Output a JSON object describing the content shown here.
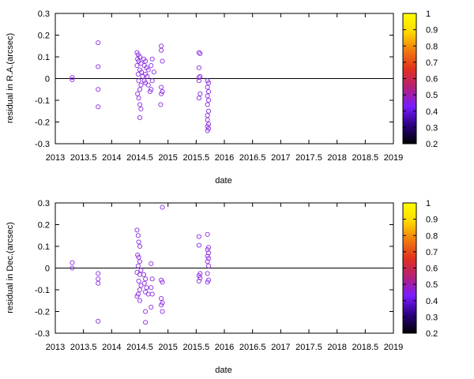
{
  "chart_data": [
    {
      "type": "scatter",
      "xlabel": "date",
      "ylabel": "residual in R.A.(arcsec)",
      "xlim": [
        2013,
        2019
      ],
      "ylim": [
        -0.3,
        0.3
      ],
      "xticks": [
        "2013",
        "2013.5",
        "2014",
        "2014.5",
        "2015",
        "2015.5",
        "2016",
        "2016.5",
        "2017",
        "2017.5",
        "2018",
        "2018.5",
        "2019"
      ],
      "yticks": [
        "-0.3",
        "-0.2",
        "-0.1",
        "0",
        "0.1",
        "0.2",
        "0.3"
      ],
      "zero_line": true,
      "marker": "open-circle",
      "marker_color": "#8a2be2",
      "colorbar": {
        "range": [
          0.2,
          1
        ],
        "ticks": [
          "0.2",
          "0.3",
          "0.4",
          "0.5",
          "0.6",
          "0.7",
          "0.8",
          "0.9",
          "1"
        ],
        "gradient": [
          "#000000",
          "#2a0080",
          "#7a1cff",
          "#b21f7a",
          "#e0301e",
          "#f07a10",
          "#ffd700",
          "#ffff00"
        ]
      },
      "series": [
        {
          "points": [
            [
              2013.3,
              0.005
            ],
            [
              2013.3,
              -0.005
            ],
            [
              2013.76,
              0.165
            ],
            [
              2013.76,
              0.055
            ],
            [
              2013.76,
              -0.05
            ],
            [
              2013.76,
              -0.13
            ],
            [
              2014.45,
              0.12
            ],
            [
              2014.47,
              0.11
            ],
            [
              2014.46,
              0.09
            ],
            [
              2014.5,
              0.1
            ],
            [
              2014.48,
              0.08
            ],
            [
              2014.52,
              0.07
            ],
            [
              2014.45,
              0.06
            ],
            [
              2014.5,
              0.04
            ],
            [
              2014.47,
              0.02
            ],
            [
              2014.53,
              0.03
            ],
            [
              2014.55,
              0.01
            ],
            [
              2014.48,
              -0.01
            ],
            [
              2014.52,
              -0.03
            ],
            [
              2014.5,
              -0.05
            ],
            [
              2014.46,
              -0.07
            ],
            [
              2014.48,
              -0.09
            ],
            [
              2014.5,
              -0.12
            ],
            [
              2014.52,
              -0.14
            ],
            [
              2014.5,
              -0.18
            ],
            [
              2014.57,
              0.09
            ],
            [
              2014.6,
              0.08
            ],
            [
              2014.58,
              0.06
            ],
            [
              2014.62,
              0.05
            ],
            [
              2014.65,
              0.04
            ],
            [
              2014.6,
              0.02
            ],
            [
              2014.63,
              0.01
            ],
            [
              2014.58,
              -0.01
            ],
            [
              2014.6,
              -0.02
            ],
            [
              2014.65,
              -0.03
            ],
            [
              2014.7,
              -0.05
            ],
            [
              2014.68,
              -0.06
            ],
            [
              2014.72,
              0.09
            ],
            [
              2014.7,
              0.06
            ],
            [
              2014.75,
              0.03
            ],
            [
              2014.72,
              -0.01
            ],
            [
              2014.88,
              0.15
            ],
            [
              2014.88,
              0.13
            ],
            [
              2014.9,
              0.08
            ],
            [
              2014.88,
              -0.04
            ],
            [
              2014.9,
              -0.06
            ],
            [
              2014.88,
              -0.07
            ],
            [
              2014.87,
              -0.12
            ],
            [
              2015.55,
              0.12
            ],
            [
              2015.57,
              0.115
            ],
            [
              2015.55,
              0.05
            ],
            [
              2015.57,
              0.01
            ],
            [
              2015.55,
              0.005
            ],
            [
              2015.55,
              -0.01
            ],
            [
              2015.57,
              -0.07
            ],
            [
              2015.55,
              -0.09
            ],
            [
              2015.7,
              -0.01
            ],
            [
              2015.72,
              -0.02
            ],
            [
              2015.7,
              -0.04
            ],
            [
              2015.72,
              -0.06
            ],
            [
              2015.7,
              -0.08
            ],
            [
              2015.72,
              -0.1
            ],
            [
              2015.7,
              -0.12
            ],
            [
              2015.72,
              -0.15
            ],
            [
              2015.7,
              -0.17
            ],
            [
              2015.7,
              -0.19
            ],
            [
              2015.72,
              -0.21
            ],
            [
              2015.7,
              -0.22
            ],
            [
              2015.72,
              -0.23
            ],
            [
              2015.7,
              -0.24
            ]
          ]
        }
      ]
    },
    {
      "type": "scatter",
      "xlabel": "date",
      "ylabel": "residual in Dec.(arcsec)",
      "xlim": [
        2013,
        2019
      ],
      "ylim": [
        -0.3,
        0.3
      ],
      "xticks": [
        "2013",
        "2013.5",
        "2014",
        "2014.5",
        "2015",
        "2015.5",
        "2016",
        "2016.5",
        "2017",
        "2017.5",
        "2018",
        "2018.5",
        "2019"
      ],
      "yticks": [
        "-0.3",
        "-0.2",
        "-0.1",
        "0",
        "0.1",
        "0.2",
        "0.3"
      ],
      "zero_line": true,
      "marker": "open-circle",
      "marker_color": "#8a2be2",
      "colorbar": {
        "range": [
          0.2,
          1
        ],
        "ticks": [
          "0.2",
          "0.3",
          "0.4",
          "0.5",
          "0.6",
          "0.7",
          "0.8",
          "0.9",
          "1"
        ],
        "gradient": [
          "#000000",
          "#2a0080",
          "#7a1cff",
          "#b21f7a",
          "#e0301e",
          "#f07a10",
          "#ffd700",
          "#ffff00"
        ]
      },
      "series": [
        {
          "points": [
            [
              2013.3,
              0.025
            ],
            [
              2013.3,
              0.0
            ],
            [
              2013.76,
              -0.025
            ],
            [
              2013.76,
              -0.05
            ],
            [
              2013.76,
              -0.07
            ],
            [
              2013.76,
              -0.245
            ],
            [
              2014.45,
              0.175
            ],
            [
              2014.47,
              0.15
            ],
            [
              2014.48,
              0.12
            ],
            [
              2014.5,
              0.1
            ],
            [
              2014.46,
              0.06
            ],
            [
              2014.48,
              0.05
            ],
            [
              2014.5,
              0.03
            ],
            [
              2014.47,
              0.01
            ],
            [
              2014.52,
              -0.01
            ],
            [
              2014.45,
              -0.02
            ],
            [
              2014.5,
              -0.03
            ],
            [
              2014.48,
              -0.06
            ],
            [
              2014.52,
              -0.08
            ],
            [
              2014.5,
              -0.1
            ],
            [
              2014.47,
              -0.12
            ],
            [
              2014.45,
              -0.13
            ],
            [
              2014.5,
              -0.15
            ],
            [
              2014.57,
              -0.03
            ],
            [
              2014.6,
              -0.05
            ],
            [
              2014.58,
              -0.07
            ],
            [
              2014.62,
              -0.09
            ],
            [
              2014.6,
              -0.11
            ],
            [
              2014.65,
              -0.12
            ],
            [
              2014.6,
              -0.2
            ],
            [
              2014.6,
              -0.25
            ],
            [
              2014.7,
              0.02
            ],
            [
              2014.72,
              -0.05
            ],
            [
              2014.7,
              -0.09
            ],
            [
              2014.72,
              -0.12
            ],
            [
              2014.7,
              -0.18
            ],
            [
              2014.9,
              0.28
            ],
            [
              2014.88,
              -0.055
            ],
            [
              2014.9,
              -0.065
            ],
            [
              2014.88,
              -0.14
            ],
            [
              2014.9,
              -0.16
            ],
            [
              2014.88,
              -0.17
            ],
            [
              2014.9,
              -0.2
            ],
            [
              2015.55,
              0.145
            ],
            [
              2015.55,
              0.105
            ],
            [
              2015.57,
              -0.025
            ],
            [
              2015.55,
              -0.035
            ],
            [
              2015.57,
              -0.045
            ],
            [
              2015.55,
              -0.06
            ],
            [
              2015.7,
              0.155
            ],
            [
              2015.72,
              0.095
            ],
            [
              2015.7,
              0.085
            ],
            [
              2015.72,
              0.07
            ],
            [
              2015.7,
              0.055
            ],
            [
              2015.72,
              0.045
            ],
            [
              2015.7,
              0.03
            ],
            [
              2015.72,
              0.01
            ],
            [
              2015.7,
              -0.025
            ],
            [
              2015.72,
              -0.055
            ],
            [
              2015.7,
              -0.065
            ]
          ]
        }
      ]
    }
  ]
}
